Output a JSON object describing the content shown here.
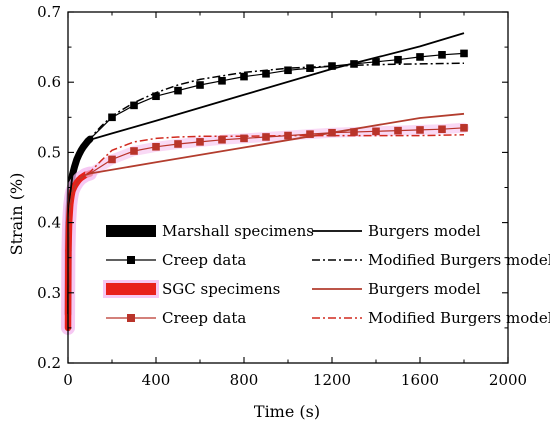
{
  "chart_data": {
    "type": "line",
    "xlabel": "Time (s)",
    "ylabel": "Strain (%)",
    "xlim": [
      0,
      2000
    ],
    "ylim": [
      0.2,
      0.7
    ],
    "xticks": [
      0,
      400,
      800,
      1200,
      1600,
      2000
    ],
    "yticks": [
      0.2,
      0.3,
      0.4,
      0.5,
      0.6,
      0.7
    ],
    "xtick_labels": [
      "0",
      "400",
      "800",
      "1200",
      "1600",
      "2000"
    ],
    "ytick_labels": [
      "0.2",
      "0.3",
      "0.4",
      "0.5",
      "0.6",
      "0.7"
    ],
    "grid": false,
    "legend_position": "center",
    "series": [
      {
        "name": "Marshall specimens",
        "kind": "dense-specimen-data",
        "color": "#000000",
        "x": [
          0,
          2,
          5,
          10,
          15,
          20,
          30,
          40,
          50,
          60,
          70,
          80,
          90,
          100
        ],
        "y": [
          0.27,
          0.39,
          0.42,
          0.445,
          0.458,
          0.468,
          0.48,
          0.49,
          0.497,
          0.503,
          0.508,
          0.512,
          0.516,
          0.519
        ]
      },
      {
        "name": "Creep data",
        "group": "Marshall",
        "kind": "markers-line",
        "color": "#000000",
        "x": [
          200,
          300,
          400,
          500,
          600,
          700,
          800,
          900,
          1000,
          1100,
          1200,
          1300,
          1400,
          1500,
          1600,
          1700,
          1800
        ],
        "y": [
          0.55,
          0.567,
          0.58,
          0.588,
          0.596,
          0.602,
          0.608,
          0.612,
          0.617,
          0.62,
          0.623,
          0.626,
          0.629,
          0.632,
          0.636,
          0.639,
          0.641
        ]
      },
      {
        "name": "Burgers model",
        "group": "Marshall",
        "kind": "solid",
        "color": "#000000",
        "x": [
          0,
          5,
          10,
          20,
          40,
          60,
          80,
          100,
          200,
          400,
          800,
          1200,
          1600,
          1800
        ],
        "y": [
          0.27,
          0.41,
          0.44,
          0.467,
          0.49,
          0.503,
          0.512,
          0.518,
          0.527,
          0.545,
          0.582,
          0.619,
          0.651,
          0.67
        ]
      },
      {
        "name": "Modified Burgers model",
        "group": "Marshall",
        "kind": "dashdot",
        "color": "#000000",
        "x": [
          0,
          5,
          10,
          20,
          40,
          60,
          80,
          100,
          150,
          200,
          300,
          400,
          500,
          600,
          800,
          1000,
          1200,
          1400,
          1600,
          1800
        ],
        "y": [
          0.27,
          0.41,
          0.44,
          0.467,
          0.49,
          0.503,
          0.512,
          0.52,
          0.537,
          0.552,
          0.571,
          0.585,
          0.596,
          0.604,
          0.614,
          0.62,
          0.623,
          0.625,
          0.626,
          0.627
        ]
      },
      {
        "name": "SGC specimens",
        "kind": "dense-specimen-data",
        "color": "#e8211b",
        "x": [
          0,
          2,
          5,
          10,
          15,
          20,
          30,
          40,
          50,
          60,
          70,
          80,
          90,
          100
        ],
        "y": [
          0.25,
          0.36,
          0.4,
          0.425,
          0.437,
          0.445,
          0.452,
          0.457,
          0.461,
          0.464,
          0.466,
          0.468,
          0.469,
          0.47
        ]
      },
      {
        "name": "Creep data",
        "group": "SGC",
        "kind": "markers-line",
        "color": "#b9342a",
        "x": [
          200,
          300,
          400,
          500,
          600,
          700,
          800,
          900,
          1000,
          1100,
          1200,
          1300,
          1400,
          1500,
          1600,
          1700,
          1800
        ],
        "y": [
          0.49,
          0.502,
          0.508,
          0.512,
          0.515,
          0.518,
          0.52,
          0.522,
          0.524,
          0.526,
          0.528,
          0.529,
          0.53,
          0.531,
          0.532,
          0.533,
          0.535
        ]
      },
      {
        "name": "Burgers model",
        "group": "SGC",
        "kind": "solid",
        "color": "#b33d2e",
        "x": [
          0,
          5,
          10,
          20,
          40,
          60,
          80,
          100,
          400,
          800,
          1200,
          1600,
          1800
        ],
        "y": [
          0.25,
          0.4,
          0.425,
          0.445,
          0.457,
          0.464,
          0.468,
          0.47,
          0.486,
          0.507,
          0.528,
          0.549,
          0.555
        ]
      },
      {
        "name": "Modified Burgers model",
        "group": "SGC",
        "kind": "dashdot",
        "color": "#d12a1f",
        "x": [
          0,
          5,
          10,
          20,
          40,
          60,
          80,
          100,
          150,
          200,
          300,
          400,
          500,
          600,
          800,
          1000,
          1200,
          1400,
          1600,
          1800
        ],
        "y": [
          0.25,
          0.4,
          0.425,
          0.445,
          0.457,
          0.464,
          0.468,
          0.472,
          0.488,
          0.503,
          0.515,
          0.52,
          0.522,
          0.523,
          0.523,
          0.524,
          0.524,
          0.524,
          0.524,
          0.525
        ]
      }
    ],
    "legend": [
      {
        "label": "Marshall specimens",
        "series": 0,
        "row": 0,
        "col": 0
      },
      {
        "label": "Burgers model",
        "series": 2,
        "row": 0,
        "col": 1
      },
      {
        "label": "Creep data",
        "series": 1,
        "row": 1,
        "col": 0
      },
      {
        "label": "Modified Burgers model",
        "series": 3,
        "row": 1,
        "col": 1
      },
      {
        "label": "SGC specimens",
        "series": 4,
        "row": 2,
        "col": 0
      },
      {
        "label": "Burgers model",
        "series": 6,
        "row": 2,
        "col": 1
      },
      {
        "label": "Creep data",
        "series": 5,
        "row": 3,
        "col": 0
      },
      {
        "label": "Modified Burgers model",
        "series": 7,
        "row": 3,
        "col": 1
      }
    ]
  }
}
